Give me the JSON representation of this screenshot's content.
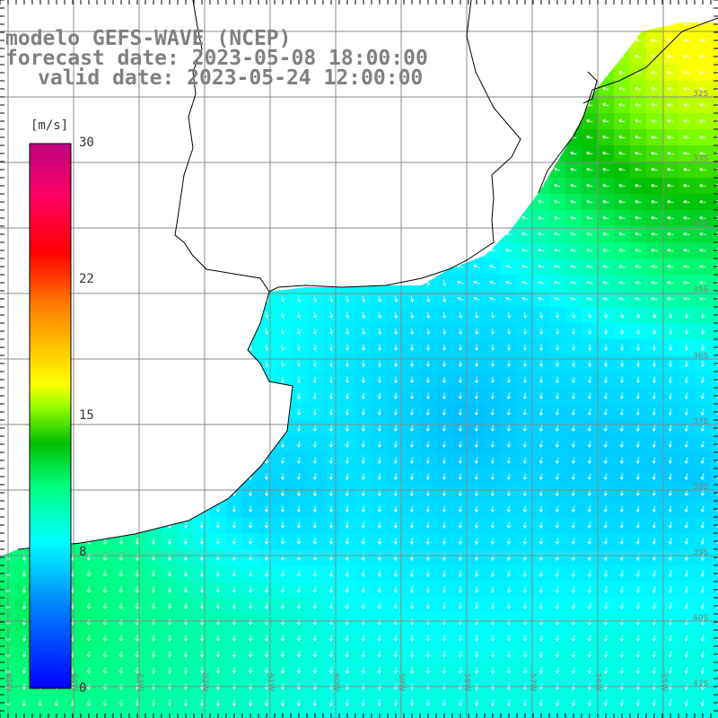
{
  "title": {
    "line1": "modelo GEFS-WAVE (NCEP)",
    "line2": "forecast date: 2023-05-08 18:00:00",
    "line3": "valid date: 2023-05-24 12:00:00"
  },
  "colorbar": {
    "unit": "[m/s]",
    "ticks": [
      {
        "value": 30,
        "label": "30"
      },
      {
        "value": 22,
        "label": "22"
      },
      {
        "value": 15,
        "label": "15"
      },
      {
        "value": 8,
        "label": "8"
      },
      {
        "value": 0,
        "label": "0"
      }
    ],
    "colors": [
      "#0000ff",
      "#0080ff",
      "#00ffff",
      "#00ff80",
      "#00c000",
      "#80ff00",
      "#ffff00",
      "#ff8000",
      "#ff0000",
      "#ff0060",
      "#c00080"
    ]
  },
  "lat_labels": [
    "32S",
    "33S",
    "34S",
    "35S",
    "36S",
    "37S",
    "38S",
    "39S",
    "40S",
    "41S"
  ],
  "lon_labels": [
    "65W",
    "64W",
    "63W",
    "62W",
    "61W",
    "60W",
    "59W",
    "58W",
    "57W",
    "56W",
    "55W"
  ]
}
